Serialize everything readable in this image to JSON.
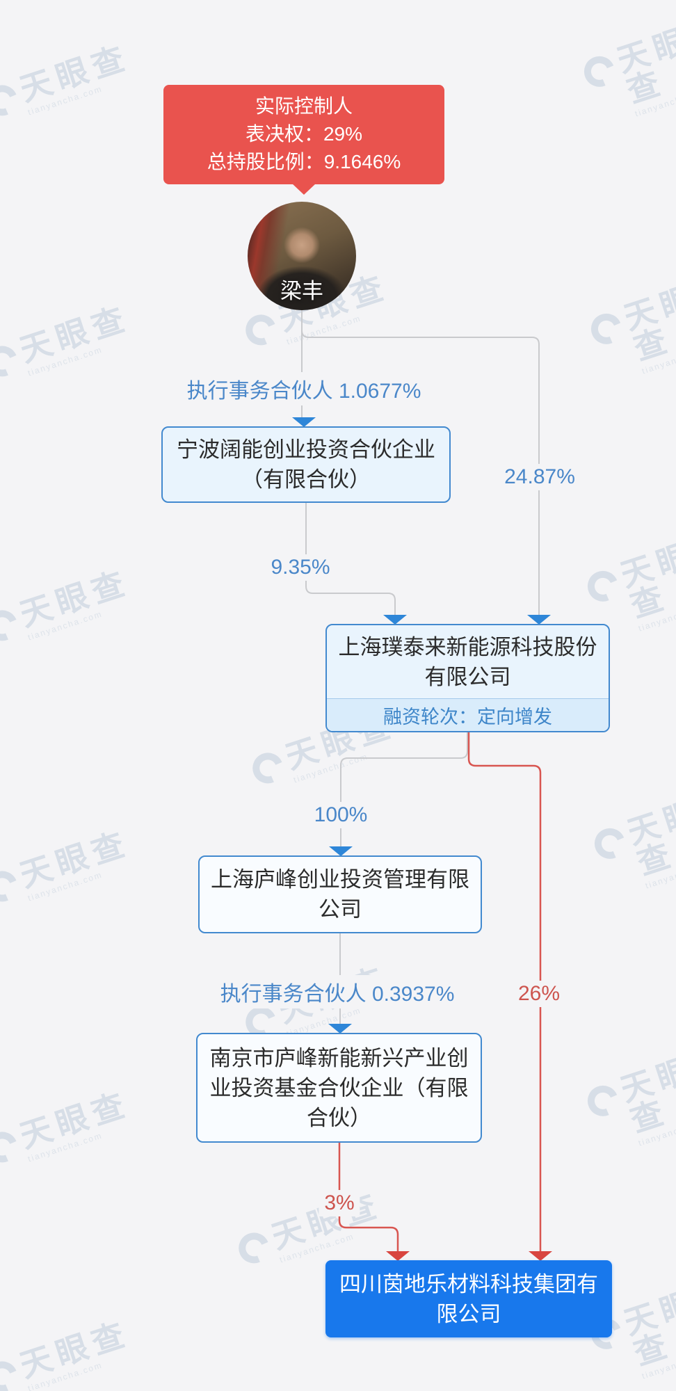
{
  "controller": {
    "line1": "实际控制人",
    "line2": "表决权：29%",
    "line3": "总持股比例：9.1646%"
  },
  "person": {
    "name": "梁丰"
  },
  "edges": {
    "exec_partner_1": {
      "label": "执行事务合伙人 1.0677%"
    },
    "pct_2487": {
      "label": "24.87%"
    },
    "pct_935": {
      "label": "9.35%"
    },
    "pct_100": {
      "label": "100%"
    },
    "pct_26": {
      "label": "26%"
    },
    "exec_partner_2": {
      "label": "执行事务合伙人 0.3937%"
    },
    "pct_3": {
      "label": "3%"
    }
  },
  "companies": {
    "ningbo": {
      "lines": [
        "宁波阔能创业投资合伙企业",
        "（有限合伙）"
      ]
    },
    "putailai": {
      "lines": [
        "上海璞泰来新能源科技股份",
        "有限公司"
      ],
      "financing": "融资轮次：定向增发"
    },
    "lufeng": {
      "lines": [
        "上海庐峰创业投资管理有限",
        "公司"
      ]
    },
    "nanjing": {
      "lines": [
        "南京市庐峰新能新兴产业创",
        "业投资基金合伙企业（有限",
        "合伙）"
      ]
    },
    "target": {
      "lines": [
        "四川茵地乐材料科技集团有",
        "限公司"
      ]
    }
  },
  "watermark": {
    "text": "天眼查",
    "sub": "tianyancha.com"
  },
  "colors": {
    "controller_bg": "#e9534e",
    "edge_blue_label": "#4a87c9",
    "edge_red": "#cd544e",
    "edge_gray": "#c9cacd",
    "node_border": "#4289cf",
    "node_bg": "#e9f4fd",
    "target_bg": "#1878ec",
    "background": "#f4f4f6"
  }
}
